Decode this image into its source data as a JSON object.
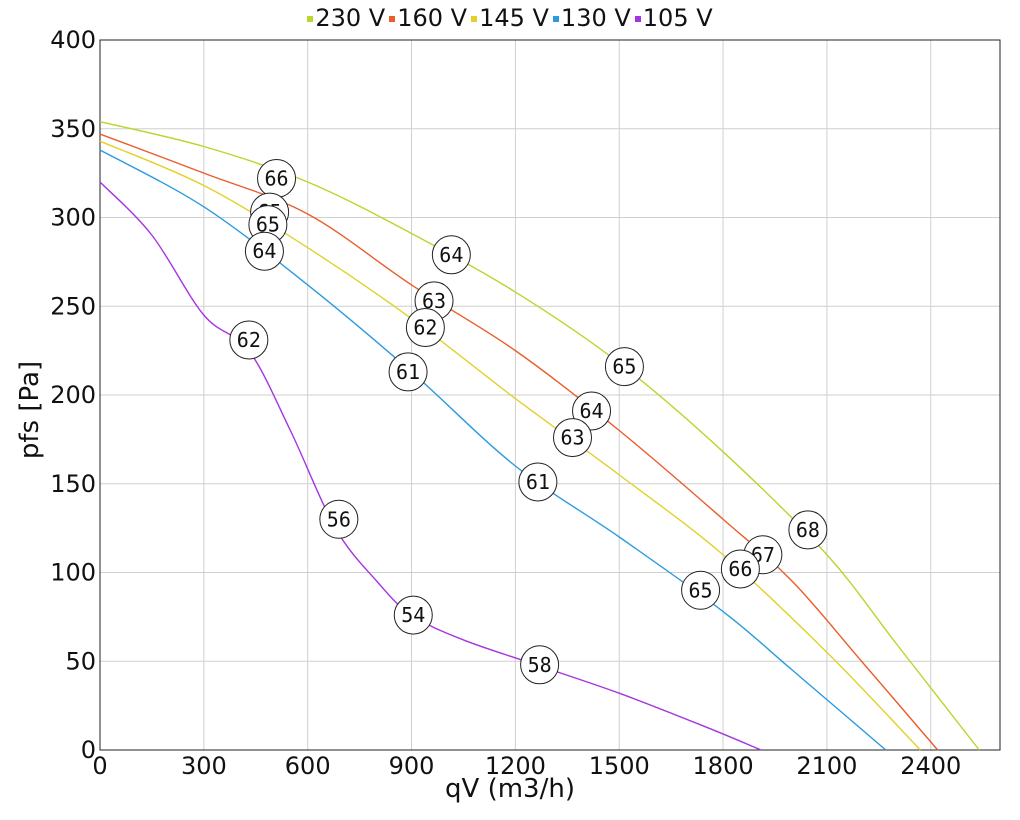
{
  "chart_data": {
    "type": "line",
    "xlabel": "qV (m3/h)",
    "ylabel": "pfs [Pa]",
    "xlim": [
      0,
      2600
    ],
    "ylim": [
      0,
      400
    ],
    "xticks": [
      0,
      300,
      600,
      900,
      1200,
      1500,
      1800,
      2100,
      2400
    ],
    "yticks": [
      0,
      50,
      100,
      150,
      200,
      250,
      300,
      350,
      400
    ],
    "grid": true,
    "legend_position": "top-center",
    "series": [
      {
        "name": "230 V",
        "color": "#b9d62b",
        "points": [
          [
            0,
            354
          ],
          [
            300,
            340
          ],
          [
            600,
            320
          ],
          [
            900,
            291
          ],
          [
            1200,
            258
          ],
          [
            1500,
            218
          ],
          [
            1800,
            168
          ],
          [
            2100,
            110
          ],
          [
            2300,
            60
          ],
          [
            2540,
            0
          ]
        ],
        "markers": [
          {
            "x": 510,
            "y": 322,
            "label": "66"
          },
          {
            "x": 1015,
            "y": 279,
            "label": "64"
          },
          {
            "x": 1515,
            "y": 216,
            "label": "65"
          },
          {
            "x": 2045,
            "y": 124,
            "label": "68"
          }
        ]
      },
      {
        "name": "160 V",
        "color": "#ea5d2b",
        "points": [
          [
            0,
            347
          ],
          [
            300,
            325
          ],
          [
            600,
            302
          ],
          [
            900,
            262
          ],
          [
            1200,
            225
          ],
          [
            1500,
            180
          ],
          [
            1800,
            130
          ],
          [
            2000,
            95
          ],
          [
            2200,
            50
          ],
          [
            2420,
            0
          ]
        ],
        "markers": [
          {
            "x": 490,
            "y": 303,
            "label": "65"
          },
          {
            "x": 965,
            "y": 253,
            "label": "63"
          },
          {
            "x": 1420,
            "y": 191,
            "label": "64"
          },
          {
            "x": 1915,
            "y": 110,
            "label": "67"
          }
        ]
      },
      {
        "name": "145 V",
        "color": "#e2d12a",
        "points": [
          [
            0,
            343
          ],
          [
            300,
            318
          ],
          [
            600,
            283
          ],
          [
            900,
            243
          ],
          [
            1200,
            198
          ],
          [
            1500,
            155
          ],
          [
            1800,
            110
          ],
          [
            2100,
            55
          ],
          [
            2370,
            0
          ]
        ],
        "markers": [
          {
            "x": 485,
            "y": 296,
            "label": "65"
          },
          {
            "x": 940,
            "y": 238,
            "label": "62"
          },
          {
            "x": 1365,
            "y": 176,
            "label": "63"
          },
          {
            "x": 1850,
            "y": 102,
            "label": "66"
          }
        ]
      },
      {
        "name": "130 V",
        "color": "#2a9be0",
        "points": [
          [
            0,
            338
          ],
          [
            300,
            306
          ],
          [
            600,
            262
          ],
          [
            900,
            213
          ],
          [
            1200,
            160
          ],
          [
            1500,
            120
          ],
          [
            1800,
            78
          ],
          [
            2000,
            45
          ],
          [
            2270,
            0
          ]
        ],
        "markers": [
          {
            "x": 475,
            "y": 281,
            "label": "64"
          },
          {
            "x": 890,
            "y": 213,
            "label": "61"
          },
          {
            "x": 1265,
            "y": 151,
            "label": "61"
          },
          {
            "x": 1735,
            "y": 90,
            "label": "65"
          }
        ]
      },
      {
        "name": "105 V",
        "color": "#a534e0",
        "points": [
          [
            0,
            320
          ],
          [
            150,
            290
          ],
          [
            300,
            245
          ],
          [
            430,
            225
          ],
          [
            550,
            180
          ],
          [
            680,
            125
          ],
          [
            800,
            95
          ],
          [
            900,
            76
          ],
          [
            1050,
            62
          ],
          [
            1260,
            48
          ],
          [
            1500,
            32
          ],
          [
            1750,
            13
          ],
          [
            1910,
            0
          ]
        ],
        "markers": [
          {
            "x": 430,
            "y": 231,
            "label": "62"
          },
          {
            "x": 690,
            "y": 130,
            "label": "56"
          },
          {
            "x": 905,
            "y": 76,
            "label": "54"
          },
          {
            "x": 1270,
            "y": 48,
            "label": "58"
          }
        ]
      }
    ]
  }
}
